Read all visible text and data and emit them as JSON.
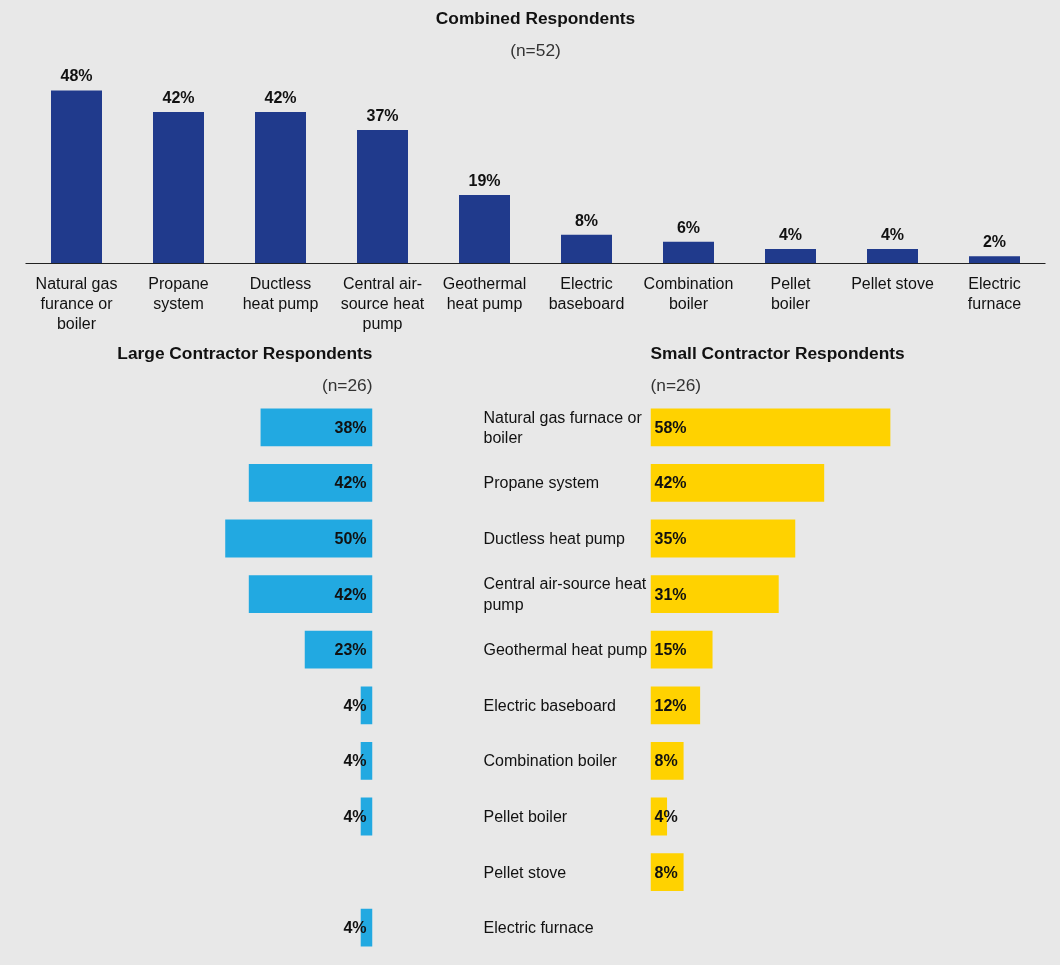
{
  "chart_data": [
    {
      "type": "bar",
      "title": "Combined Respondents",
      "subtitle": "(n=52)",
      "categories": [
        "Natural gas furance or boiler",
        "Propane system",
        "Ductless heat pump",
        "Central air-source heat pump",
        "Geothermal heat pump",
        "Electric baseboard",
        "Combination boiler",
        "Pellet boiler",
        "Pellet stove",
        "Electric furnace"
      ],
      "values": [
        48,
        42,
        42,
        37,
        19,
        8,
        6,
        4,
        4,
        2
      ],
      "value_labels": [
        "48%",
        "42%",
        "42%",
        "37%",
        "19%",
        "8%",
        "6%",
        "4%",
        "4%",
        "2%"
      ],
      "color": "#203a8c",
      "tick_labels": "x"
    },
    {
      "type": "bar",
      "orientation": "horizontal",
      "title": "Large Contractor Respondents",
      "subtitle": "(n=26)",
      "categories": [
        "Natural gas furnace or boiler",
        "Propane system",
        "Ductless heat pump",
        "Central air-source heat pump",
        "Geothermal heat pump",
        "Electric baseboard",
        "Combination boiler",
        "Pellet boiler",
        "Pellet stove",
        "Electric furnace"
      ],
      "values": [
        38,
        42,
        50,
        42,
        23,
        4,
        4,
        4,
        null,
        4
      ],
      "value_labels": [
        "38%",
        "42%",
        "50%",
        "42%",
        "23%",
        "4%",
        "4%",
        "4%",
        null,
        "4%"
      ],
      "color": "#22a9e1",
      "tick_labels": "y"
    },
    {
      "type": "bar",
      "orientation": "horizontal",
      "title": "Small Contractor Respondents",
      "subtitle": "(n=26)",
      "categories": [
        "Natural gas furnace or boiler",
        "Propane system",
        "Ductless heat pump",
        "Central air-source heat pump",
        "Geothermal heat pump",
        "Electric baseboard",
        "Combination boiler",
        "Pellet boiler",
        "Pellet stove",
        "Electric furnace"
      ],
      "values": [
        58,
        42,
        35,
        31,
        15,
        12,
        8,
        4,
        8,
        null
      ],
      "value_labels": [
        "58%",
        "42%",
        "35%",
        "31%",
        "15%",
        "12%",
        "8%",
        "4%",
        "8%",
        null
      ],
      "color": "#ffd200",
      "tick_labels": false
    }
  ]
}
